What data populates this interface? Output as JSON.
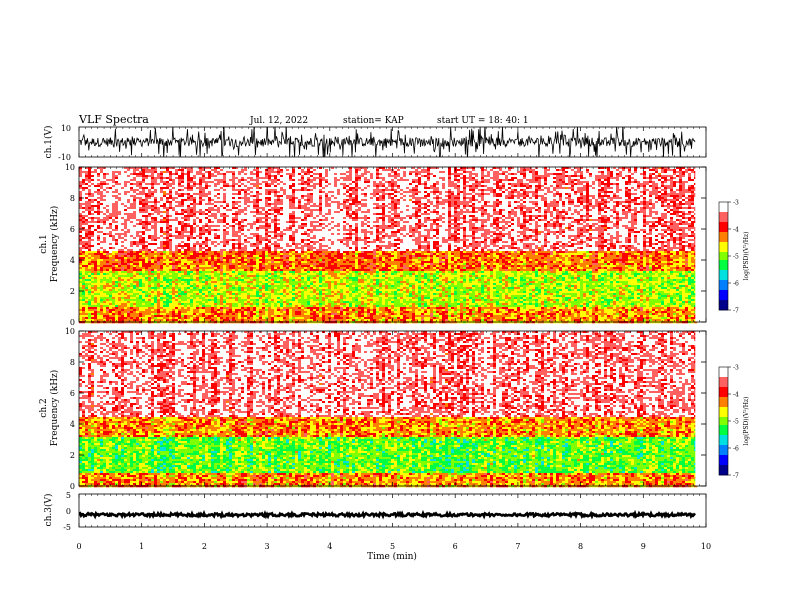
{
  "header": {
    "title": "VLF Spectra",
    "date": "Jul. 12, 2022",
    "station": "station= KAP",
    "start": "start UT = 18: 40: 1"
  },
  "colors": {
    "spectrogram_scale": [
      "#00008b",
      "#0000ff",
      "#0080ff",
      "#00e0e0",
      "#00ff40",
      "#80ff00",
      "#ffff00",
      "#ff8000",
      "#ff0000",
      "#ff6060",
      "#ffffff"
    ],
    "trace": "#000000"
  },
  "chart_data": [
    {
      "type": "line",
      "name": "ch1-waveform",
      "ylabel": "ch.1(V)",
      "ylim": [
        -10,
        10
      ],
      "y_ticks": [
        "10",
        "-10"
      ],
      "xlim": [
        0,
        10
      ],
      "data_end_min": 9.83,
      "description": "broadband waveform, dense black trace between about -10 and 10 V"
    },
    {
      "type": "heatmap",
      "name": "ch1-spectrogram",
      "ylabel": "ch.1\nFrequency (kHz)",
      "ylim": [
        0,
        10
      ],
      "y_ticks": [
        "0",
        "2",
        "4",
        "6",
        "8",
        "10"
      ],
      "xlim": [
        0,
        10
      ],
      "data_end_min": 9.83,
      "colorbar": {
        "label": "log(PSD)(V²/Hz)",
        "range": [
          -7,
          -3
        ],
        "ticks": [
          "-3",
          "-4",
          "-5",
          "-6",
          "-7"
        ]
      },
      "bands_kHz": [
        {
          "from": 0,
          "to": 1,
          "level": -4.3
        },
        {
          "from": 1,
          "to": 3.3,
          "level": -4.8
        },
        {
          "from": 3.3,
          "to": 4.6,
          "level": -4.2
        },
        {
          "from": 4.6,
          "to": 10,
          "level": -3.4
        }
      ]
    },
    {
      "type": "heatmap",
      "name": "ch2-spectrogram",
      "ylabel": "ch.2\nFrequency (kHz)",
      "ylim": [
        0,
        10
      ],
      "y_ticks": [
        "0",
        "2",
        "4",
        "6",
        "8",
        "10"
      ],
      "xlim": [
        0,
        10
      ],
      "data_end_min": 9.83,
      "colorbar": {
        "label": "log(PSD)(V²/Hz)",
        "range": [
          -7,
          -3
        ],
        "ticks": [
          "-3",
          "-4",
          "-5",
          "-6",
          "-7"
        ]
      },
      "bands_kHz": [
        {
          "from": 0,
          "to": 0.8,
          "level": -4.3
        },
        {
          "from": 0.8,
          "to": 3.2,
          "level": -5.1
        },
        {
          "from": 3.2,
          "to": 4.5,
          "level": -4.3
        },
        {
          "from": 4.5,
          "to": 10,
          "level": -3.4
        }
      ]
    },
    {
      "type": "line",
      "name": "ch3-waveform",
      "ylabel": "ch.3(V)",
      "ylim": [
        -5,
        5
      ],
      "y_ticks": [
        "5",
        "0",
        "-5"
      ],
      "xlim": [
        0,
        10
      ],
      "data_end_min": 9.83,
      "description": "near-constant trace around -1.3 V"
    }
  ],
  "x_axis": {
    "label": "Time (min)",
    "ticks": [
      "0",
      "1",
      "2",
      "3",
      "4",
      "5",
      "6",
      "7",
      "8",
      "9",
      "10"
    ]
  }
}
